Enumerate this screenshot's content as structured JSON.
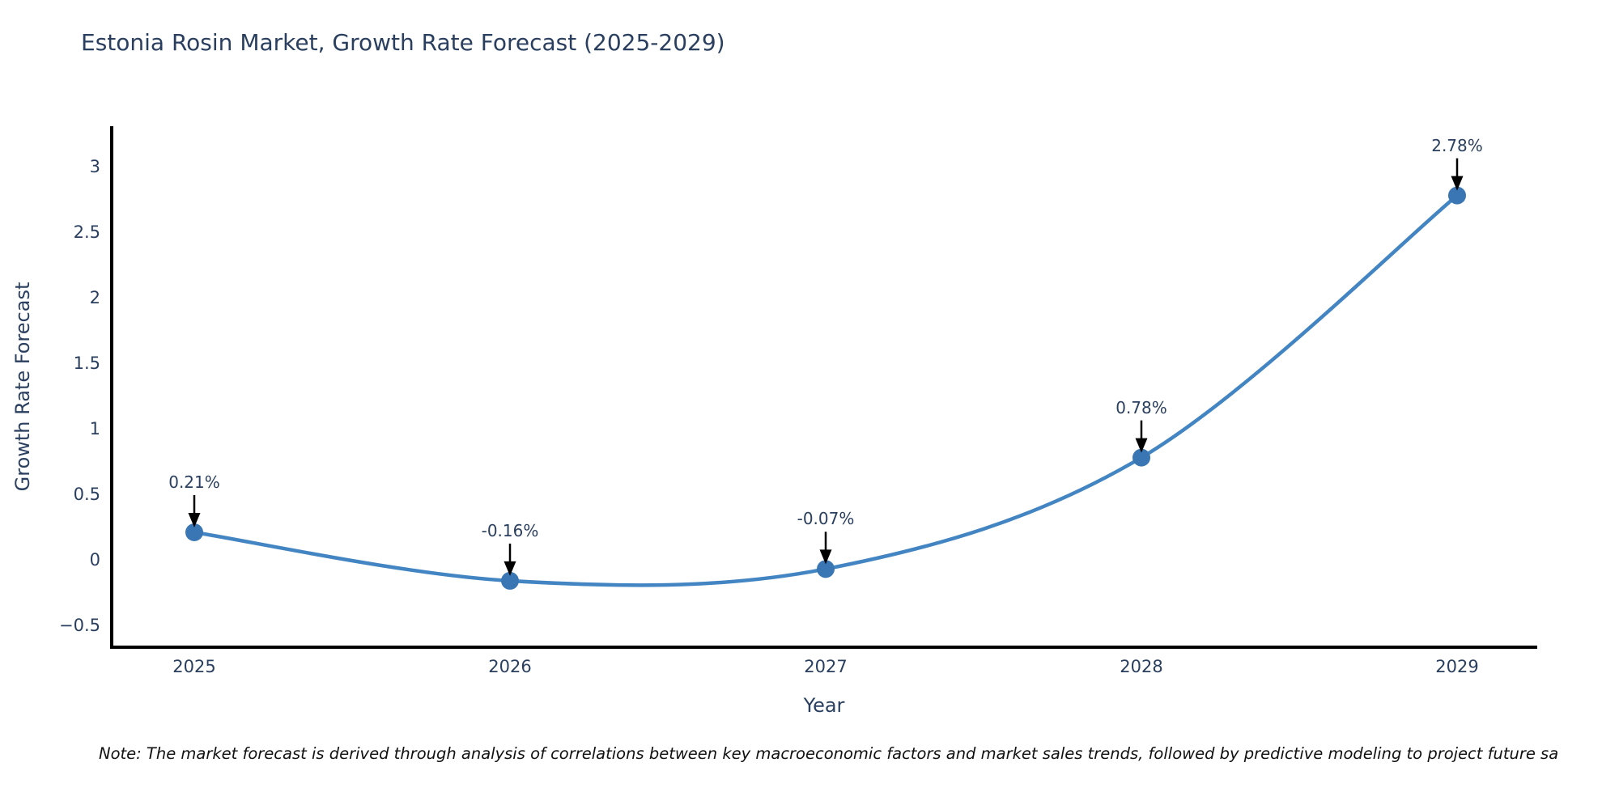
{
  "chart_data": {
    "type": "line",
    "title": "Estonia Rosin Market, Growth Rate Forecast (2025-2029)",
    "xlabel": "Year",
    "ylabel": "Growth Rate Forecast",
    "categories": [
      "2025",
      "2026",
      "2027",
      "2028",
      "2029"
    ],
    "series": [
      {
        "name": "Growth Rate Forecast",
        "values": [
          0.21,
          -0.16,
          -0.07,
          0.78,
          2.78
        ]
      }
    ],
    "point_labels": [
      "0.21%",
      "-0.16%",
      "-0.07%",
      "0.78%",
      "2.78%"
    ],
    "y_tick_values": [
      3,
      2.5,
      2,
      1.5,
      1,
      0.5,
      0,
      -0.5
    ],
    "y_tick_labels": [
      "3",
      "2.5",
      "2",
      "1.5",
      "1",
      "0.5",
      "0",
      "−0.5"
    ],
    "ylim": [
      -0.78,
      3.32
    ],
    "grid": false,
    "legend_position": "none",
    "line_shape": "spline",
    "line_color": "#4285c2",
    "marker_color": "#3a76b3",
    "arrow_color": "#000000",
    "axis_color": "#000000",
    "text_color": "#2a3f5f"
  },
  "note": "Note: The market forecast is derived through analysis of correlations between key macroeconomic factors and market sales trends, followed by predictive modeling to project future sa"
}
